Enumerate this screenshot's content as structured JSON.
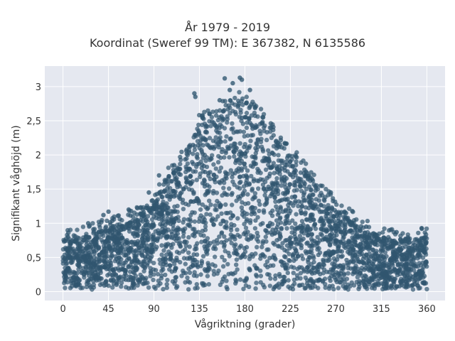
{
  "chart_data": {
    "type": "scatter",
    "title_line1": "År 1979 - 2019",
    "title_line2": "Koordinat (Sweref 99 TM): E 367382, N 6135586",
    "xlabel": "Vågriktning (grader)",
    "ylabel": "Signifikant våghöjd (m)",
    "xlim": [
      -18,
      378
    ],
    "ylim": [
      -0.13,
      3.3
    ],
    "x_ticks": [
      0,
      45,
      90,
      135,
      180,
      225,
      270,
      315,
      360
    ],
    "x_tick_labels": [
      "0",
      "45",
      "90",
      "135",
      "180",
      "225",
      "270",
      "315",
      "360"
    ],
    "y_ticks": [
      0,
      0.5,
      1,
      1.5,
      2,
      2.5,
      3
    ],
    "y_tick_labels": [
      "0",
      "0,5",
      "1",
      "1,5",
      "2",
      "2,5",
      "3"
    ],
    "grid": true,
    "point_color": "#30566f",
    "background_color": "#e5e8f0",
    "envelope": {
      "x": [
        0,
        20,
        45,
        70,
        90,
        105,
        120,
        135,
        150,
        165,
        180,
        195,
        210,
        225,
        240,
        255,
        270,
        290,
        315,
        340,
        360
      ],
      "y_max": [
        0.78,
        0.8,
        0.95,
        1.05,
        1.3,
        1.7,
        2.0,
        2.45,
        2.55,
        2.75,
        2.8,
        2.55,
        2.25,
        2.0,
        1.75,
        1.45,
        1.2,
        1.0,
        0.8,
        0.75,
        0.8
      ]
    },
    "outliers": [
      {
        "x": 130,
        "y": 2.9
      },
      {
        "x": 131,
        "y": 2.85
      },
      {
        "x": 160,
        "y": 3.12
      },
      {
        "x": 168,
        "y": 3.05
      },
      {
        "x": 175,
        "y": 3.13
      },
      {
        "x": 177,
        "y": 3.1
      },
      {
        "x": 165,
        "y": 2.95
      },
      {
        "x": 155,
        "y": 2.8
      },
      {
        "x": 145,
        "y": 2.6
      },
      {
        "x": 185,
        "y": 2.95
      },
      {
        "x": 190,
        "y": 2.7
      },
      {
        "x": 198,
        "y": 2.55
      },
      {
        "x": 240,
        "y": 1.7
      },
      {
        "x": 255,
        "y": 1.55
      },
      {
        "x": 265,
        "y": 1.45
      },
      {
        "x": 280,
        "y": 1.15
      },
      {
        "x": 300,
        "y": 0.95
      },
      {
        "x": 330,
        "y": 0.87
      },
      {
        "x": 355,
        "y": 0.92
      },
      {
        "x": 5,
        "y": 0.8
      },
      {
        "x": 25,
        "y": 1.0
      },
      {
        "x": 40,
        "y": 1.12
      },
      {
        "x": 45,
        "y": 1.17
      },
      {
        "x": 65,
        "y": 1.2
      },
      {
        "x": 85,
        "y": 1.45
      },
      {
        "x": 95,
        "y": 1.7
      },
      {
        "x": 110,
        "y": 1.85
      }
    ]
  }
}
